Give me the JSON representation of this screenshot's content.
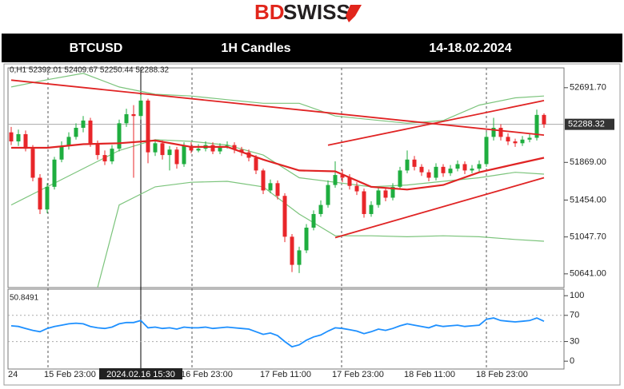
{
  "logo": {
    "part1": "BD",
    "part2": "SWISS"
  },
  "header": {
    "symbol": "BTCUSD",
    "timeframe": "1H Candles",
    "dates": "14-18.02.2024"
  },
  "chart_data": [
    {
      "type": "candlestick",
      "ohlc_text": "0,H1  52392.01 52409.67 52250.44 52288.32",
      "categories": [
        "24",
        null,
        null,
        null,
        null,
        "15 Feb 23:00",
        null,
        null,
        null,
        null,
        null,
        null,
        null,
        null,
        null,
        null,
        null,
        null,
        "2024.02.16 15:30",
        null,
        null,
        null,
        null,
        null,
        "16 Feb 23:00",
        null,
        null,
        null,
        null,
        null,
        null,
        null,
        null,
        null,
        null,
        "17 Feb 11:00",
        null,
        null,
        null,
        null,
        null,
        null,
        null,
        null,
        null,
        "17 Feb 23:00",
        null,
        null,
        null,
        null,
        null,
        null,
        null,
        null,
        null,
        "18 Feb 11:00",
        null,
        null,
        null,
        null,
        null,
        null,
        null,
        null,
        null,
        "18 Feb 23:00",
        null,
        null,
        null,
        null,
        null,
        null,
        null,
        null,
        null
      ],
      "open": [
        52200,
        52100,
        52180,
        52020,
        51700,
        51350,
        51600,
        51900,
        52050,
        52150,
        52250,
        52330,
        52080,
        51950,
        51880,
        52020,
        52300,
        52400,
        52380,
        52550,
        51980,
        52080,
        51950,
        52010,
        51850,
        52050,
        52000,
        52020,
        52060,
        51990,
        52050,
        52060,
        52010,
        51980,
        51920,
        51780,
        51560,
        51640,
        51500,
        51050,
        50740,
        50900,
        51150,
        51300,
        51400,
        51620,
        51730,
        51700,
        51610,
        51550,
        51300,
        51400,
        51560,
        51480,
        51600,
        51780,
        51900,
        51820,
        51760,
        51700,
        51820,
        51750,
        51800,
        51850,
        51780,
        51800,
        51850,
        52150,
        52250,
        52150,
        52100,
        52080,
        52120,
        52140,
        52392.01
      ],
      "high": [
        52260,
        52230,
        52220,
        52060,
        51740,
        51640,
        51930,
        52100,
        52200,
        52300,
        52380,
        52360,
        52110,
        52000,
        52060,
        52340,
        52460,
        52500,
        52610,
        52570,
        52120,
        52110,
        52050,
        52040,
        52090,
        52090,
        52070,
        52100,
        52090,
        52080,
        52100,
        52090,
        52040,
        52010,
        51950,
        51800,
        51680,
        51670,
        51530,
        51080,
        50940,
        51190,
        51340,
        51450,
        51670,
        51880,
        51790,
        51740,
        51650,
        51580,
        51440,
        51600,
        51590,
        51640,
        51820,
        52000,
        51940,
        51850,
        51790,
        51860,
        51850,
        51840,
        51890,
        51880,
        51840,
        51890,
        52200,
        52360,
        52290,
        52190,
        52130,
        52160,
        52180,
        52450,
        52409.67
      ],
      "low": [
        52060,
        52050,
        51990,
        51660,
        51300,
        51310,
        51570,
        51870,
        52010,
        52120,
        52200,
        52040,
        51900,
        51840,
        51850,
        51990,
        52260,
        51700,
        52340,
        51860,
        51940,
        51900,
        51780,
        51800,
        51820,
        51970,
        51980,
        51990,
        51960,
        51960,
        52020,
        51970,
        51940,
        51880,
        51740,
        51520,
        51530,
        51460,
        50990,
        50660,
        50650,
        50870,
        51120,
        51270,
        51370,
        51590,
        51650,
        51570,
        51510,
        51260,
        51270,
        51370,
        51440,
        51450,
        51570,
        51750,
        51780,
        51720,
        51660,
        51670,
        51710,
        51720,
        51770,
        51740,
        51750,
        51770,
        51820,
        52110,
        52110,
        52060,
        52040,
        52050,
        52090,
        52110,
        52250.44
      ],
      "close": [
        52100,
        52180,
        52020,
        51700,
        51350,
        51600,
        51900,
        52050,
        52150,
        52250,
        52330,
        52080,
        51950,
        51880,
        52020,
        52300,
        52400,
        52380,
        52550,
        51980,
        52080,
        51950,
        52010,
        51850,
        52050,
        52000,
        52020,
        52060,
        51990,
        52050,
        52060,
        52010,
        51980,
        51920,
        51780,
        51560,
        51640,
        51500,
        51050,
        50740,
        50900,
        51150,
        51300,
        51400,
        51620,
        51730,
        51700,
        51610,
        51550,
        51300,
        51400,
        51560,
        51480,
        51600,
        51780,
        51900,
        51820,
        51760,
        51700,
        51820,
        51750,
        51800,
        51850,
        51780,
        51800,
        51850,
        52150,
        52250,
        52150,
        52100,
        52080,
        52120,
        52140,
        52392.01,
        52288.32
      ],
      "up_color": "#1fae3f",
      "down_color": "#e8262a",
      "moving_average": {
        "color": "#e02424",
        "x": [
          0,
          5,
          10,
          15,
          20,
          25,
          30,
          35,
          40,
          45,
          50,
          55,
          60,
          65,
          70,
          74
        ],
        "values": [
          52030,
          52030,
          52070,
          52080,
          52110,
          52040,
          52040,
          51900,
          51780,
          51770,
          51600,
          51570,
          51620,
          51760,
          51850,
          51920
        ]
      },
      "bands": {
        "color": "#7cc47c",
        "upper": {
          "x": [
            0,
            5,
            10,
            15,
            20,
            25,
            30,
            35,
            40,
            45,
            50,
            55,
            60,
            65,
            70,
            74
          ],
          "values": [
            52700,
            52780,
            52850,
            52700,
            52620,
            52600,
            52560,
            52520,
            52520,
            52380,
            52340,
            52300,
            52330,
            52500,
            52580,
            52600
          ]
        },
        "middle": {
          "x": [
            0,
            5,
            10,
            15,
            20,
            25,
            30,
            35,
            40,
            45,
            50,
            55,
            60,
            65,
            70,
            74
          ],
          "values": [
            51400,
            51600,
            51800,
            52000,
            52120,
            52100,
            52060,
            51950,
            51700,
            51650,
            51600,
            51620,
            51660,
            51700,
            51760,
            51740
          ]
        },
        "lower": {
          "x": [
            12,
            15,
            20,
            25,
            30,
            35,
            40,
            45,
            50,
            55,
            60,
            65,
            70,
            74
          ],
          "values": [
            50490,
            51400,
            51600,
            51650,
            51660,
            51600,
            51300,
            51060,
            51060,
            51050,
            51060,
            51050,
            51020,
            51000
          ]
        }
      },
      "trendlines": {
        "color": "#e02424",
        "lines": [
          {
            "x": [
              0,
              74
            ],
            "values": [
              52775,
              52170
            ]
          },
          {
            "x": [
              44,
              74
            ],
            "values": [
              52058,
              52550
            ]
          },
          {
            "x": [
              45,
              74
            ],
            "values": [
              51040,
              51700
            ]
          }
        ]
      },
      "ylim": [
        50490,
        52910
      ],
      "yticks": [
        {
          "value": 52691.7,
          "label": "52691.70"
        },
        {
          "value": 51869,
          "label": "51869.00"
        },
        {
          "value": 51454,
          "label": "51454.00"
        },
        {
          "value": 51047.7,
          "label": "51047.70"
        },
        {
          "value": 50641,
          "label": "50641.00"
        }
      ]
    },
    {
      "type": "line",
      "title": "50.8491",
      "color": "#1e90ff",
      "values": [
        54,
        53,
        50,
        47,
        45,
        50,
        53,
        55,
        57,
        58,
        57,
        53,
        51,
        50,
        52,
        57,
        59,
        59,
        62,
        51,
        52,
        50,
        51,
        49,
        52,
        51,
        51,
        52,
        50,
        51,
        52,
        51,
        50,
        49,
        45,
        41,
        43,
        39,
        30,
        22,
        25,
        32,
        37,
        40,
        46,
        51,
        50,
        48,
        46,
        42,
        45,
        49,
        47,
        50,
        54,
        57,
        55,
        53,
        51,
        55,
        53,
        54,
        55,
        53,
        54,
        55,
        64,
        66,
        62,
        61,
        60,
        61,
        62,
        66,
        61
      ],
      "ylim": [
        -12,
        110
      ],
      "yticks": [
        100,
        70,
        30,
        0
      ],
      "dashed_ticks": [
        70,
        30
      ]
    }
  ]
}
